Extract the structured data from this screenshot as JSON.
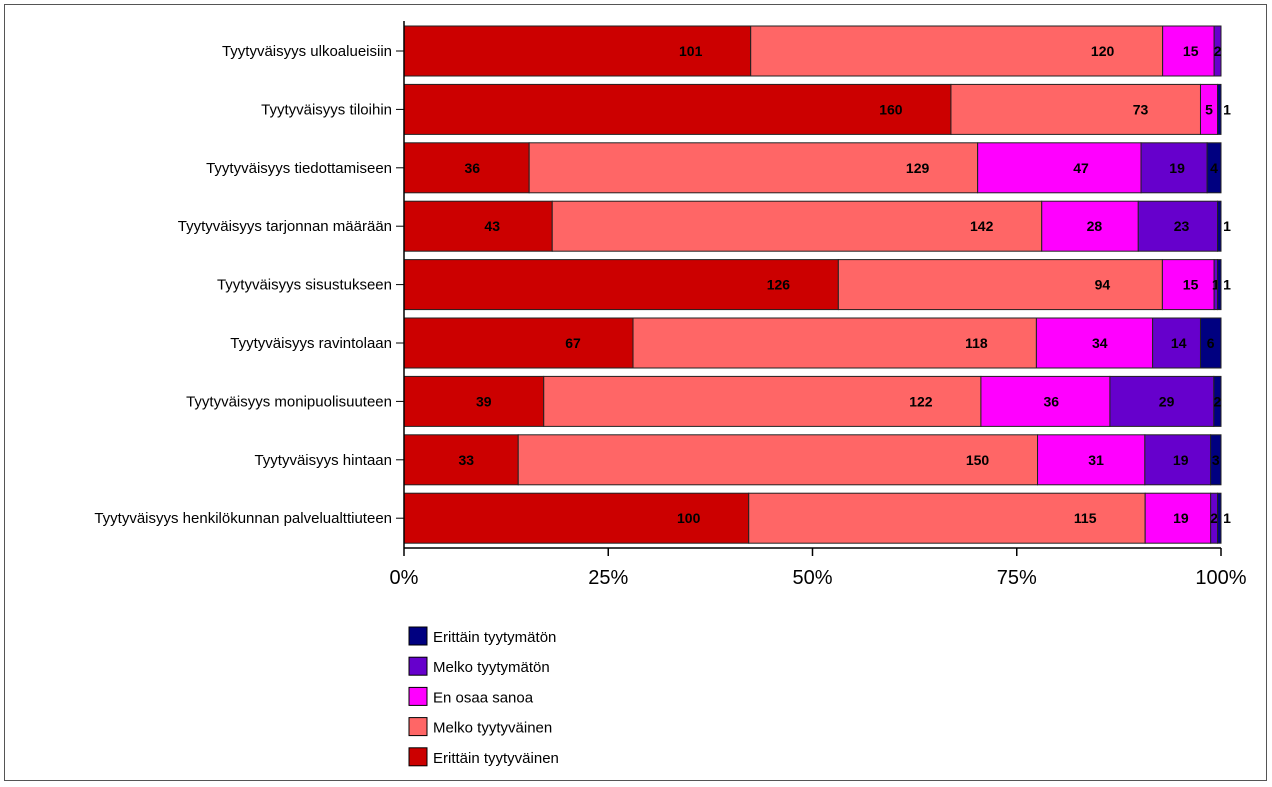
{
  "chart_data": {
    "type": "bar",
    "orientation": "horizontal",
    "stacked": "percent",
    "categories": [
      "Tyytyväisyys ulkoalueisiin",
      "Tyytyväisyys tiloihin",
      "Tyytyväisyys tiedottamiseen",
      "Tyytyväisyys tarjonnan määrään",
      "Tyytyväisyys sisustukseen",
      "Tyytyväisyys ravintolaan",
      "Tyytyväisyys monipuolisuuteen",
      "Tyytyväisyys hintaan",
      "Tyytyväisyys henkilökunnan palvelualttiuteen"
    ],
    "series": [
      {
        "name": "Erittäin tyytyväinen",
        "color": "#CC0000",
        "values": [
          101,
          160,
          36,
          43,
          126,
          67,
          39,
          33,
          100
        ]
      },
      {
        "name": "Melko tyytyväinen",
        "color": "#FF6666",
        "values": [
          120,
          73,
          129,
          142,
          94,
          118,
          122,
          150,
          115
        ]
      },
      {
        "name": "En osaa sanoa",
        "color": "#FF00FF",
        "values": [
          15,
          5,
          47,
          28,
          15,
          34,
          36,
          31,
          19
        ]
      },
      {
        "name": "Melko tyytymätön",
        "color": "#6600CC",
        "values": [
          2,
          0,
          19,
          23,
          1,
          14,
          29,
          19,
          2
        ]
      },
      {
        "name": "Erittäin tyytymätön",
        "color": "#000080",
        "values": [
          0,
          1,
          4,
          1,
          1,
          6,
          2,
          3,
          1
        ]
      }
    ],
    "x_ticks": [
      "0%",
      "25%",
      "50%",
      "75%",
      "100%"
    ],
    "xlim": [
      0,
      100
    ],
    "legend_order": [
      "Erittäin tyytymätön",
      "Melko tyytymätön",
      "En osaa sanoa",
      "Melko tyytyväinen",
      "Erittäin tyytyväinen"
    ],
    "legend_position": "bottom-left",
    "grid": false
  }
}
